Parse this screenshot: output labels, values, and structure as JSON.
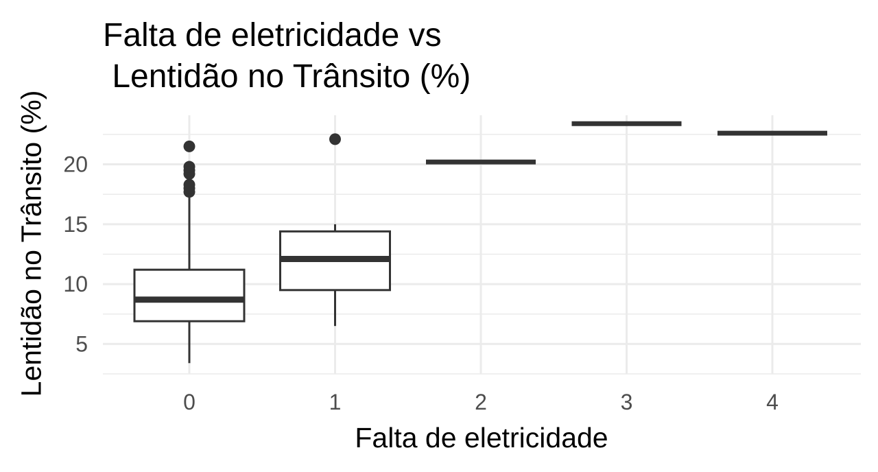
{
  "chart_data": {
    "type": "boxplot",
    "title_lines": [
      "Falta de eletricidade vs",
      " Lentidão no Trânsito (%)"
    ],
    "xlabel": "Falta de eletricidade",
    "ylabel": "Lentidão no Trânsito (%)",
    "categories": [
      "0",
      "1",
      "2",
      "3",
      "4"
    ],
    "y_ticks": [
      5,
      10,
      15,
      20
    ],
    "ylim": [
      2.5,
      24.1
    ],
    "grid": true,
    "colors": {
      "box_line": "#333333",
      "grid": "#ebebeb",
      "tick_text": "#4d4d4d"
    },
    "boxes": [
      {
        "category": "0",
        "min": 3.4,
        "q1": 6.9,
        "median": 8.7,
        "q3": 11.2,
        "max": 17.6,
        "outliers": [
          17.7,
          18.0,
          18.3,
          19.2,
          19.5,
          19.8,
          21.5
        ]
      },
      {
        "category": "1",
        "min": 6.5,
        "q1": 9.5,
        "median": 12.1,
        "q3": 14.4,
        "max": 15.0,
        "outliers": [
          22.1
        ]
      },
      {
        "category": "2",
        "min": 20.2,
        "q1": 20.2,
        "median": 20.2,
        "q3": 20.2,
        "max": 20.2,
        "outliers": []
      },
      {
        "category": "3",
        "min": 23.4,
        "q1": 23.4,
        "median": 23.4,
        "q3": 23.4,
        "max": 23.4,
        "outliers": []
      },
      {
        "category": "4",
        "min": 22.6,
        "q1": 22.6,
        "median": 22.6,
        "q3": 22.6,
        "max": 22.6,
        "outliers": []
      }
    ]
  }
}
